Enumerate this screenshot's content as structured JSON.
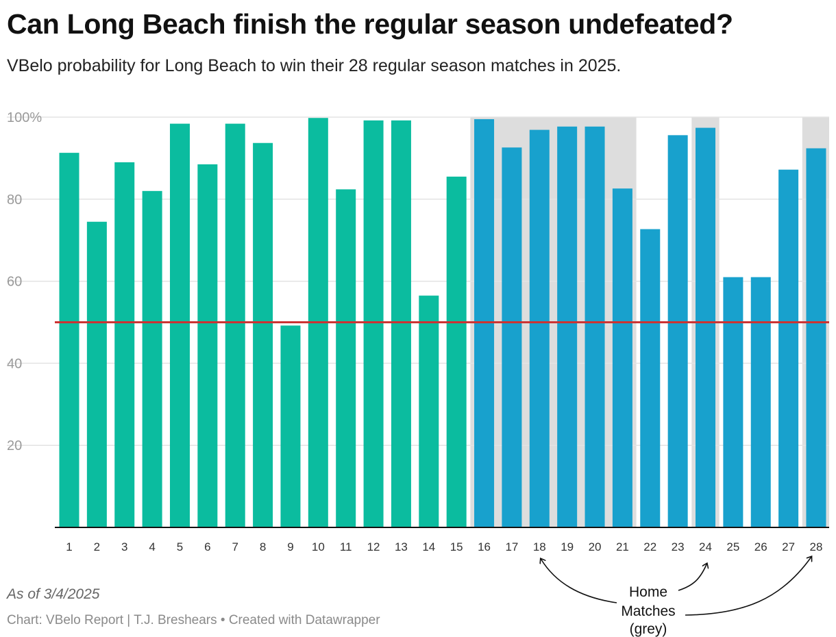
{
  "header": {
    "title": "Can Long Beach finish the regular season undefeated?",
    "subtitle": "VBelo probability for Long Beach to win their 28 regular season matches in 2025."
  },
  "chart_data": {
    "type": "bar",
    "categories": [
      "1",
      "2",
      "3",
      "4",
      "5",
      "6",
      "7",
      "8",
      "9",
      "10",
      "11",
      "12",
      "13",
      "14",
      "15",
      "16",
      "17",
      "18",
      "19",
      "20",
      "21",
      "22",
      "23",
      "24",
      "25",
      "26",
      "27",
      "28"
    ],
    "values": [
      91.3,
      74.5,
      89,
      82,
      98.4,
      88.5,
      98.4,
      93.7,
      49.2,
      99.8,
      82.4,
      99.2,
      99.2,
      56.5,
      85.5,
      99.5,
      92.6,
      96.9,
      97.7,
      97.7,
      82.6,
      72.7,
      95.6,
      97.4,
      61,
      61,
      87.2,
      92.4
    ],
    "ylim": [
      0,
      100
    ],
    "y_ticks": [
      {
        "value": 20,
        "label": "20"
      },
      {
        "value": 40,
        "label": "40"
      },
      {
        "value": 60,
        "label": "60"
      },
      {
        "value": 80,
        "label": "80"
      },
      {
        "value": 100,
        "label": "100%"
      }
    ],
    "reference_line": {
      "value": 50,
      "color": "#cc3333"
    },
    "bar_colors": {
      "first_part": "#0bbc9f",
      "second_part": "#18a1cd"
    },
    "first_part_count": 15,
    "shaded_groups": [
      [
        16,
        21
      ],
      [
        24,
        24
      ],
      [
        28,
        28
      ]
    ],
    "shade_color": "#dddddd",
    "grid": true,
    "annotation": {
      "lines": [
        "Home",
        "Matches",
        "(grey)"
      ],
      "arrow_targets": [
        "18",
        "24",
        "28"
      ]
    }
  },
  "footer": {
    "note": "As of 3/4/2025",
    "credit": "Chart: VBelo Report | T.J. Breshears • Created with Datawrapper"
  }
}
